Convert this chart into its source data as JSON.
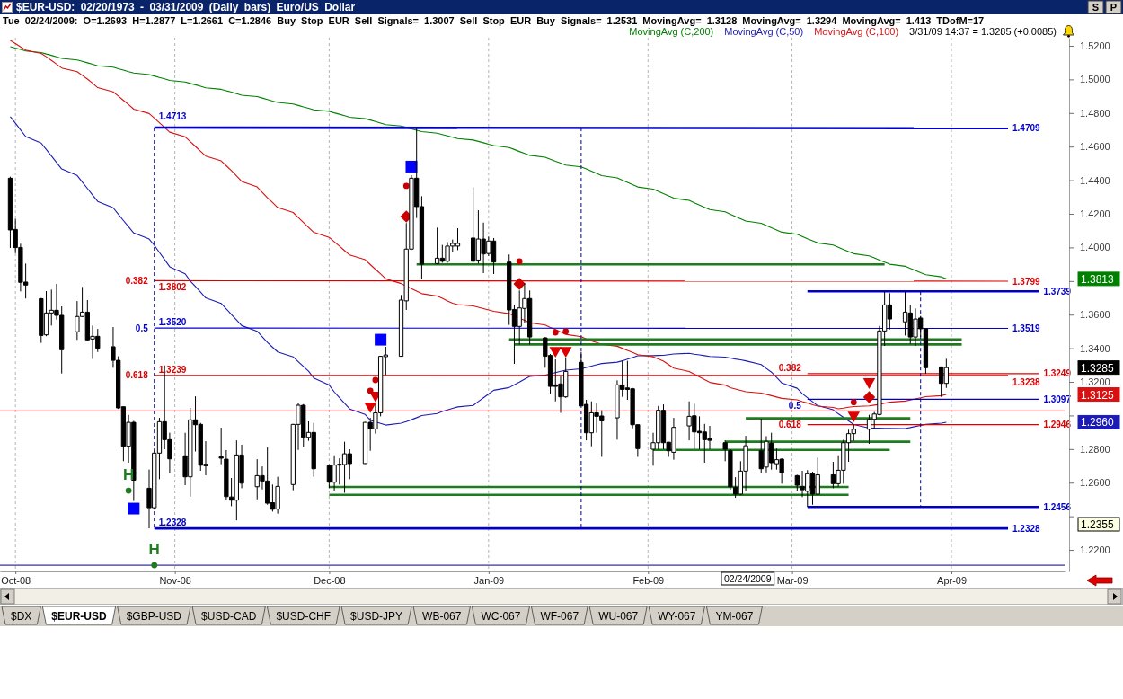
{
  "chart_data": {
    "type": "candlestick",
    "title": "$EUR-USD: 02/20/1973 - 03/31/2009 (Daily bars) Euro/US Dollar",
    "subtitle": "Tue 02/24/2009: O=1.2693 H=1.2877 L=1.2661 C=1.2846 Buy Stop EUR Sell Signals= 1.3007 Sell Stop EUR Buy Signals= 1.2531 MovingAvg= 1.3128 MovingAvg= 1.3294 MovingAvg= 1.413 TDofM=17",
    "x": [
      "2008-09-30",
      "2008-10-01",
      "2008-10-02",
      "2008-10-03",
      "2008-10-06",
      "2008-10-07",
      "2008-10-08",
      "2008-10-09",
      "2008-10-10",
      "2008-10-13",
      "2008-10-14",
      "2008-10-15",
      "2008-10-16",
      "2008-10-17",
      "2008-10-20",
      "2008-10-21",
      "2008-10-22",
      "2008-10-23",
      "2008-10-24",
      "2008-10-27",
      "2008-10-28",
      "2008-10-29",
      "2008-10-30",
      "2008-10-31",
      "2008-11-03",
      "2008-11-04",
      "2008-11-05",
      "2008-11-06",
      "2008-11-07",
      "2008-11-10",
      "2008-11-11",
      "2008-11-12",
      "2008-11-13",
      "2008-11-14",
      "2008-11-17",
      "2008-11-18",
      "2008-11-19",
      "2008-11-20",
      "2008-11-21",
      "2008-11-24",
      "2008-11-25",
      "2008-11-26",
      "2008-11-27",
      "2008-11-28",
      "2008-12-01",
      "2008-12-02",
      "2008-12-03",
      "2008-12-04",
      "2008-12-05",
      "2008-12-08",
      "2008-12-09",
      "2008-12-10",
      "2008-12-11",
      "2008-12-12",
      "2008-12-15",
      "2008-12-16",
      "2008-12-17",
      "2008-12-18",
      "2008-12-19",
      "2008-12-22",
      "2008-12-23",
      "2008-12-24",
      "2008-12-25",
      "2008-12-26",
      "2008-12-29",
      "2008-12-30",
      "2008-12-31",
      "2009-01-01",
      "2009-01-02",
      "2009-01-05",
      "2009-01-06",
      "2009-01-07",
      "2009-01-08",
      "2009-01-09",
      "2009-01-12",
      "2009-01-13",
      "2009-01-14",
      "2009-01-15",
      "2009-01-16",
      "2009-01-19",
      "2009-01-20",
      "2009-01-21",
      "2009-01-22",
      "2009-01-23",
      "2009-01-26",
      "2009-01-27",
      "2009-01-28",
      "2009-01-29",
      "2009-01-30",
      "2009-02-02",
      "2009-02-03",
      "2009-02-04",
      "2009-02-05",
      "2009-02-06",
      "2009-02-09",
      "2009-02-10",
      "2009-02-11",
      "2009-02-12",
      "2009-02-13",
      "2009-02-16",
      "2009-02-17",
      "2009-02-18",
      "2009-02-19",
      "2009-02-20",
      "2009-02-23",
      "2009-02-24",
      "2009-02-25",
      "2009-02-26",
      "2009-02-27",
      "2009-03-02",
      "2009-03-03",
      "2009-03-04",
      "2009-03-05",
      "2009-03-06",
      "2009-03-09",
      "2009-03-10",
      "2009-03-11",
      "2009-03-12",
      "2009-03-13",
      "2009-03-16",
      "2009-03-17",
      "2009-03-18",
      "2009-03-19",
      "2009-03-20",
      "2009-03-23",
      "2009-03-24",
      "2009-03-25",
      "2009-03-26",
      "2009-03-27",
      "2009-03-30",
      "2009-03-31"
    ],
    "ohlc": [
      [
        1.4412,
        1.4421,
        1.3997,
        1.4104
      ],
      [
        1.4107,
        1.4171,
        1.3966,
        1.3999
      ],
      [
        1.4,
        1.4022,
        1.3738,
        1.3792
      ],
      [
        1.3794,
        1.3904,
        1.3696,
        1.3776
      ],
      [
        1.3695,
        1.3699,
        1.3432,
        1.3476
      ],
      [
        1.348,
        1.374,
        1.3472,
        1.361
      ],
      [
        1.361,
        1.3749,
        1.3535,
        1.3626
      ],
      [
        1.3626,
        1.3783,
        1.3571,
        1.3596
      ],
      [
        1.3596,
        1.3649,
        1.325,
        1.3391
      ],
      [
        1.3498,
        1.3681,
        1.345,
        1.3589
      ],
      [
        1.3589,
        1.3765,
        1.3587,
        1.3615
      ],
      [
        1.3615,
        1.3687,
        1.3441,
        1.345
      ],
      [
        1.3455,
        1.3535,
        1.3337,
        1.3471
      ],
      [
        1.3471,
        1.3515,
        1.3378,
        1.34
      ],
      [
        1.3409,
        1.3526,
        1.3284,
        1.3328
      ],
      [
        1.3328,
        1.3352,
        1.3039,
        1.3045
      ],
      [
        1.3052,
        1.3055,
        1.2728,
        1.2817
      ],
      [
        1.2817,
        1.3004,
        1.2719,
        1.2959
      ],
      [
        1.2959,
        1.2968,
        1.2491,
        1.2615
      ],
      [
        1.2567,
        1.2678,
        1.2328,
        1.2451
      ],
      [
        1.2451,
        1.279,
        1.244,
        1.2776
      ],
      [
        1.2776,
        1.2986,
        1.2621,
        1.2963
      ],
      [
        1.2963,
        1.3298,
        1.2799,
        1.2856
      ],
      [
        1.2856,
        1.2897,
        1.2656,
        1.2742
      ],
      [
        1.276,
        1.2897,
        1.2585,
        1.2635
      ],
      [
        1.2635,
        1.3045,
        1.2517,
        1.2974
      ],
      [
        1.2974,
        1.3114,
        1.2786,
        1.2945
      ],
      [
        1.2947,
        1.2956,
        1.2671,
        1.2704
      ],
      [
        1.271,
        1.2847,
        1.2644,
        1.2701
      ],
      [
        1.2754,
        1.2927,
        1.271,
        1.2746
      ],
      [
        1.274,
        1.2794,
        1.2496,
        1.2517
      ],
      [
        1.2515,
        1.2628,
        1.246,
        1.2496
      ],
      [
        1.2496,
        1.2852,
        1.2376,
        1.2765
      ],
      [
        1.2765,
        1.2826,
        1.2567,
        1.2597
      ],
      [
        1.2576,
        1.274,
        1.2501,
        1.2642
      ],
      [
        1.2642,
        1.2697,
        1.256,
        1.261
      ],
      [
        1.261,
        1.2811,
        1.2469,
        1.2478
      ],
      [
        1.2481,
        1.2589,
        1.2428,
        1.2442
      ],
      [
        1.2443,
        1.2635,
        1.2416,
        1.2578
      ],
      [
        1.2589,
        1.295,
        1.2555,
        1.2947
      ],
      [
        1.2947,
        1.3077,
        1.2795,
        1.3061
      ],
      [
        1.3061,
        1.3068,
        1.2813,
        1.287
      ],
      [
        1.287,
        1.2965,
        1.2849,
        1.2899
      ],
      [
        1.2899,
        1.2956,
        1.2635,
        1.2683
      ],
      [
        1.2701,
        1.271,
        1.2567,
        1.2603
      ],
      [
        1.2603,
        1.2763,
        1.2553,
        1.2705
      ],
      [
        1.271,
        1.2745,
        1.2589,
        1.2705
      ],
      [
        1.2708,
        1.2844,
        1.254,
        1.2772
      ],
      [
        1.2772,
        1.2799,
        1.2621,
        1.2714
      ],
      [
        1.2714,
        1.2962,
        1.2712,
        1.2959
      ],
      [
        1.2959,
        1.2986,
        1.279,
        1.292
      ],
      [
        1.292,
        1.3066,
        1.2892,
        1.3016
      ],
      [
        1.3016,
        1.3355,
        1.2995,
        1.3352
      ],
      [
        1.335,
        1.3409,
        1.3241,
        1.336
      ],
      [
        1.3352,
        1.3717,
        1.335,
        1.3687
      ],
      [
        1.3682,
        1.4145,
        1.3628,
        1.399
      ],
      [
        1.399,
        1.443,
        1.3985,
        1.4412
      ],
      [
        1.4412,
        1.4713,
        1.4175,
        1.4243
      ],
      [
        1.4243,
        1.4305,
        1.3815,
        1.39
      ],
      [
        1.3904,
        1.4118,
        1.39,
        1.3936
      ],
      [
        1.3936,
        1.4015,
        1.3909,
        1.3918
      ],
      [
        1.3918,
        1.4032,
        1.3909,
        1.4008
      ],
      [
        1.4008,
        1.4047,
        1.3975,
        1.4024
      ],
      [
        1.4008,
        1.4114,
        1.3984,
        1.4024
      ],
      [
        1.4056,
        1.4359,
        1.3912,
        1.3918
      ],
      [
        1.3925,
        1.4221,
        1.3904,
        1.405
      ],
      [
        1.405,
        1.4148,
        1.3847,
        1.3961
      ],
      [
        1.3964,
        1.4065,
        1.3949,
        1.4038
      ],
      [
        1.4038,
        1.4056,
        1.3842,
        1.3913
      ],
      [
        1.3913,
        1.3958,
        1.3539,
        1.3628
      ],
      [
        1.3631,
        1.3655,
        1.3307,
        1.353
      ],
      [
        1.353,
        1.3744,
        1.3423,
        1.364
      ],
      [
        1.3637,
        1.3788,
        1.3553,
        1.3696
      ],
      [
        1.3696,
        1.3744,
        1.3423,
        1.3467
      ],
      [
        1.3462,
        1.3467,
        1.3284,
        1.3352
      ],
      [
        1.3357,
        1.3366,
        1.3129,
        1.3173
      ],
      [
        1.3182,
        1.3334,
        1.3084,
        1.3173
      ],
      [
        1.3188,
        1.3236,
        1.3016,
        1.3111
      ],
      [
        1.3111,
        1.3343,
        1.3105,
        1.3262
      ],
      [
        1.3316,
        1.3378,
        1.3057,
        1.3057
      ],
      [
        1.3066,
        1.3093,
        1.2852,
        1.2897
      ],
      [
        1.2897,
        1.3084,
        1.2817,
        1.3016
      ],
      [
        1.3016,
        1.3075,
        1.2897,
        1.2995
      ],
      [
        1.2997,
        1.3031,
        1.2754,
        1.2968
      ],
      [
        1.2986,
        1.3209,
        1.2856,
        1.3182
      ],
      [
        1.3182,
        1.3325,
        1.3111,
        1.3155
      ],
      [
        1.3164,
        1.3325,
        1.3093,
        1.3155
      ],
      [
        1.3159,
        1.3164,
        1.2924,
        1.2945
      ],
      [
        1.2945,
        1.2948,
        1.2754,
        1.2803
      ],
      [
        1.2799,
        1.2897,
        1.2701,
        1.2838
      ],
      [
        1.2838,
        1.3057,
        1.2798,
        1.3031
      ],
      [
        1.3031,
        1.3066,
        1.2799,
        1.2838
      ],
      [
        1.2841,
        1.2843,
        1.2754,
        1.279
      ],
      [
        1.2781,
        1.2986,
        1.2737,
        1.2929
      ],
      [
        1.2938,
        1.3084,
        1.2852,
        1.2995
      ],
      [
        1.2998,
        1.307,
        1.2799,
        1.2902
      ],
      [
        1.2906,
        1.2995,
        1.2799,
        1.2897
      ],
      [
        1.2902,
        1.295,
        1.2719,
        1.2856
      ],
      [
        1.2861,
        1.2938,
        1.2799,
        1.2852
      ],
      [
        1.2838,
        1.2852,
        1.2728,
        1.2799
      ],
      [
        1.279,
        1.2799,
        1.2558,
        1.2576
      ],
      [
        1.2571,
        1.2633,
        1.251,
        1.2532
      ],
      [
        1.2532,
        1.2728,
        1.2526,
        1.2669
      ],
      [
        1.2669,
        1.2879,
        1.2549,
        1.282
      ],
      [
        1.279,
        1.2981,
        1.2656,
        1.2683
      ],
      [
        1.2693,
        1.2877,
        1.2661,
        1.2846
      ],
      [
        1.2835,
        1.2897,
        1.2678,
        1.2719
      ],
      [
        1.2713,
        1.2803,
        1.2678,
        1.2737
      ],
      [
        1.274,
        1.2745,
        1.2594,
        1.266
      ],
      [
        1.2642,
        1.2647,
        1.2549,
        1.2585
      ],
      [
        1.2576,
        1.2671,
        1.2514,
        1.2558
      ],
      [
        1.2549,
        1.2675,
        1.2456,
        1.2653
      ],
      [
        1.2653,
        1.2665,
        1.2469,
        1.2532
      ],
      [
        1.2532,
        1.2749,
        1.253,
        1.2647
      ],
      [
        1.2647,
        1.2724,
        1.2567,
        1.2594
      ],
      [
        1.2594,
        1.2763,
        1.2576,
        1.2674
      ],
      [
        1.2674,
        1.2856,
        1.2594,
        1.2838
      ],
      [
        1.2838,
        1.2915,
        1.2724,
        1.2892
      ],
      [
        1.2892,
        1.2945,
        1.2849,
        1.2918
      ],
      [
        1.2918,
        1.3004,
        1.2831,
        1.2977
      ],
      [
        1.2977,
        1.3021,
        1.2922,
        1.3009
      ],
      [
        1.3006,
        1.3533,
        1.3001,
        1.3503
      ],
      [
        1.3503,
        1.3739,
        1.3414,
        1.3658
      ],
      [
        1.3658,
        1.3728,
        1.3512,
        1.3574
      ],
      [
        1.3557,
        1.3735,
        1.3476,
        1.3615
      ],
      [
        1.361,
        1.3655,
        1.3426,
        1.3467
      ],
      [
        1.3467,
        1.3637,
        1.3414,
        1.3574
      ],
      [
        1.358,
        1.3592,
        1.3467,
        1.3516
      ],
      [
        1.3516,
        1.3521,
        1.3248,
        1.3284
      ],
      [
        1.3289,
        1.3289,
        1.3111,
        1.3191
      ],
      [
        1.3191,
        1.3337,
        1.3164,
        1.3285
      ]
    ],
    "series": [
      {
        "type": "line",
        "name": "MovingAvg (C,200)",
        "color": "#008000",
        "values": [
          1.5195,
          1.5186,
          1.5178,
          1.5169,
          1.516,
          1.5151,
          1.5143,
          1.5134,
          1.5125,
          1.5116,
          1.5108,
          1.5099,
          1.509,
          1.5081,
          1.5073,
          1.5064,
          1.5055,
          1.5046,
          1.5038,
          1.5029,
          1.502,
          1.5011,
          1.5003,
          1.4994,
          1.4985,
          1.4976,
          1.4968,
          1.4959,
          1.495,
          1.4941,
          1.4933,
          1.4924,
          1.4915,
          1.4906,
          1.4898,
          1.4889,
          1.488,
          1.4871,
          1.4863,
          1.4854,
          1.4845,
          1.4836,
          1.4828,
          1.4819,
          1.481,
          1.4801,
          1.4793,
          1.4784,
          1.4775,
          1.4766,
          1.4758,
          1.4749,
          1.474,
          1.4731,
          1.4723,
          1.4714,
          1.4705,
          1.4697,
          1.4689,
          1.468,
          1.4672,
          1.4664,
          1.4656,
          1.4648,
          1.4639,
          1.4631,
          1.4623,
          1.4614,
          1.4606,
          1.4594,
          1.4583,
          1.4571,
          1.456,
          1.4548,
          1.4537,
          1.4525,
          1.4513,
          1.4502,
          1.449,
          1.4479,
          1.4467,
          1.4454,
          1.444,
          1.4427,
          1.4414,
          1.44,
          1.4387,
          1.4374,
          1.436,
          1.4347,
          1.4334,
          1.432,
          1.4307,
          1.4293,
          1.428,
          1.4266,
          1.4252,
          1.4239,
          1.4225,
          1.4212,
          1.4198,
          1.4184,
          1.4171,
          1.4157,
          1.4144,
          1.413,
          1.4117,
          1.4104,
          1.4091,
          1.4078,
          1.4065,
          1.4052,
          1.404,
          1.4027,
          1.4014,
          1.4001,
          1.3988,
          1.3975,
          1.3963,
          1.395,
          1.3938,
          1.3925,
          1.3913,
          1.39,
          1.3888,
          1.3875,
          1.3863,
          1.385,
          1.3838,
          1.3825,
          1.3813
        ]
      },
      {
        "type": "line",
        "name": "MovingAvg (C,50)",
        "color": "#1c1cb4",
        "values": [
          1.4778,
          1.4739,
          1.4699,
          1.466,
          1.4621,
          1.4583,
          1.4544,
          1.4505,
          1.4467,
          1.4428,
          1.4389,
          1.4351,
          1.4312,
          1.4274,
          1.4236,
          1.4198,
          1.416,
          1.4123,
          1.4086,
          1.405,
          1.4013,
          1.397,
          1.3928,
          1.3885,
          1.3843,
          1.38,
          1.3767,
          1.3734,
          1.37,
          1.3667,
          1.3634,
          1.3601,
          1.3568,
          1.3535,
          1.3501,
          1.3468,
          1.3435,
          1.3406,
          1.3378,
          1.3349,
          1.332,
          1.3292,
          1.3264,
          1.3223,
          1.3181,
          1.314,
          1.3106,
          1.3073,
          1.3039,
          1.3006,
          1.2972,
          1.2962,
          1.2953,
          1.2943,
          1.2954,
          1.2964,
          1.2975,
          1.2987,
          1.3,
          1.3012,
          1.3024,
          1.3033,
          1.3042,
          1.3051,
          1.306,
          1.3083,
          1.3105,
          1.3128,
          1.315,
          1.3166,
          1.3183,
          1.3199,
          1.3216,
          1.3232,
          1.324,
          1.3247,
          1.3255,
          1.3263,
          1.327,
          1.3278,
          1.3286,
          1.3294,
          1.3302,
          1.3309,
          1.3317,
          1.3325,
          1.3335,
          1.3345,
          1.3355,
          1.3356,
          1.3357,
          1.3358,
          1.3362,
          1.3366,
          1.337,
          1.3365,
          1.3361,
          1.3356,
          1.3351,
          1.3347,
          1.3342,
          1.3336,
          1.3331,
          1.3325,
          1.3303,
          1.328,
          1.3258,
          1.3226,
          1.3194,
          1.3162,
          1.313,
          1.3106,
          1.3082,
          1.3058,
          1.3034,
          1.301,
          1.2989,
          1.2968,
          1.2946,
          1.2925,
          1.2924,
          1.2924,
          1.2923,
          1.2923,
          1.2922,
          1.2928,
          1.2935,
          1.2941,
          1.2947,
          1.2954,
          1.296
        ]
      },
      {
        "type": "line",
        "name": "MovingAvg (C,100)",
        "color": "#d81010",
        "values": [
          1.5232,
          1.5213,
          1.5193,
          1.5174,
          1.5154,
          1.5135,
          1.5113,
          1.5091,
          1.5068,
          1.5046,
          1.5024,
          1.5002,
          1.4977,
          1.4951,
          1.4926,
          1.4901,
          1.4875,
          1.485,
          1.4823,
          1.4797,
          1.477,
          1.4742,
          1.4714,
          1.4686,
          1.4658,
          1.463,
          1.4601,
          1.4572,
          1.4544,
          1.4515,
          1.4486,
          1.4457,
          1.4425,
          1.4393,
          1.436,
          1.4328,
          1.4296,
          1.4267,
          1.4237,
          1.4208,
          1.4178,
          1.4149,
          1.4119,
          1.409,
          1.406,
          1.4034,
          1.4008,
          1.3981,
          1.3955,
          1.3927,
          1.3898,
          1.387,
          1.3842,
          1.3813,
          1.3785,
          1.377,
          1.3755,
          1.374,
          1.3725,
          1.3711,
          1.3697,
          1.3682,
          1.3668,
          1.366,
          1.3652,
          1.3644,
          1.3636,
          1.3628,
          1.362,
          1.3606,
          1.3593,
          1.3579,
          1.3566,
          1.3552,
          1.3538,
          1.3524,
          1.3511,
          1.3497,
          1.3483,
          1.3469,
          1.3455,
          1.3444,
          1.3434,
          1.3423,
          1.3412,
          1.34,
          1.3387,
          1.3375,
          1.3362,
          1.3349,
          1.3336,
          1.3323,
          1.3303,
          1.3282,
          1.3262,
          1.3246,
          1.323,
          1.3213,
          1.3197,
          1.3181,
          1.3165,
          1.3157,
          1.3149,
          1.3141,
          1.3133,
          1.3126,
          1.3118,
          1.311,
          1.3102,
          1.3093,
          1.3083,
          1.3074,
          1.3064,
          1.3056,
          1.3048,
          1.304,
          1.3044,
          1.3049,
          1.3053,
          1.3057,
          1.3062,
          1.3066,
          1.3073,
          1.3079,
          1.3086,
          1.3092,
          1.3099,
          1.3105,
          1.3112,
          1.3118,
          1.3125
        ]
      },
      {
        "type": "line",
        "color": "#0000cc",
        "x": [
          "2008-10-28",
          "2009-04-12"
        ],
        "values": [
          1.4713,
          1.4709
        ],
        "value_labels": [
          "1.4713",
          "1.4709"
        ]
      },
      {
        "type": "line",
        "name": "0.382",
        "color": "#dd0000",
        "x": [
          "2008-10-28",
          "2009-04-12"
        ],
        "values": [
          1.3802,
          1.3799
        ],
        "value_labels": [
          "1.3802",
          "1.3799"
        ]
      },
      {
        "type": "line",
        "name": "0.5",
        "color": "#0000cc",
        "x": [
          "2008-10-28",
          "2009-04-12"
        ],
        "values": [
          1.352,
          1.3519
        ],
        "value_labels": [
          "1.3520",
          "1.3519"
        ]
      },
      {
        "type": "line",
        "name": "0.618",
        "color": "#dd0000",
        "x": [
          "2008-10-28",
          "2009-04-12"
        ],
        "values": [
          1.3239,
          1.3238
        ],
        "value_labels": [
          "1.3239",
          "1.3238"
        ]
      },
      {
        "type": "line",
        "color": "#0000cc",
        "x": [
          "2008-10-28",
          "2009-04-12"
        ],
        "values": [
          1.2328,
          1.2328
        ],
        "value_labels": [
          "1.2328",
          "1.2328"
        ]
      },
      {
        "type": "line",
        "color": "#0000cc",
        "x": [
          "2009-03-04",
          "2009-04-18"
        ],
        "values": [
          1.3739,
          1.3739
        ],
        "value_labels": [
          null,
          "1.3739"
        ]
      },
      {
        "type": "line",
        "name": "0.382",
        "color": "#dd0000",
        "x": [
          "2009-03-04",
          "2009-04-18"
        ],
        "values": [
          1.3249,
          1.3249
        ],
        "value_labels": [
          null,
          "1.3249"
        ]
      },
      {
        "type": "line",
        "name": "0.5",
        "color": "#0000cc",
        "x": [
          "2009-03-04",
          "2009-04-18"
        ],
        "values": [
          1.3097,
          1.3097
        ],
        "value_labels": [
          null,
          "1.3097"
        ]
      },
      {
        "type": "line",
        "name": "0.618",
        "color": "#dd0000",
        "x": [
          "2009-03-04",
          "2009-04-18"
        ],
        "values": [
          1.2946,
          1.2946
        ],
        "value_labels": [
          null,
          "1.2946"
        ]
      },
      {
        "type": "line",
        "color": "#0000cc",
        "x": [
          "2009-03-04",
          "2009-04-18"
        ],
        "values": [
          1.2456,
          1.2456
        ],
        "value_labels": [
          null,
          "1.2456"
        ]
      },
      {
        "type": "line",
        "color": "#1e7b1e",
        "x": [
          "2008-12-18",
          "2009-03-19"
        ],
        "values": [
          1.3899,
          1.3899
        ]
      },
      {
        "type": "line",
        "color": "#1e7b1e",
        "x": [
          "2009-01-05",
          "2009-04-03"
        ],
        "values": [
          1.3453,
          1.3453
        ]
      },
      {
        "type": "line",
        "color": "#1e7b1e",
        "x": [
          "2009-01-06",
          "2009-04-03"
        ],
        "values": [
          1.3423,
          1.3423
        ]
      },
      {
        "type": "line",
        "color": "#1e7b1e",
        "x": [
          "2009-02-20",
          "2009-03-24"
        ],
        "values": [
          1.2983,
          1.2983
        ]
      },
      {
        "type": "line",
        "color": "#1e7b1e",
        "x": [
          "2009-02-16",
          "2009-03-24"
        ],
        "values": [
          1.2844,
          1.2844
        ]
      },
      {
        "type": "line",
        "color": "#1e7b1e",
        "x": [
          "2009-02-02",
          "2009-03-20"
        ],
        "values": [
          1.2795,
          1.2795
        ]
      },
      {
        "type": "line",
        "color": "#1e7b1e",
        "x": [
          "2008-12-01",
          "2009-03-12"
        ],
        "values": [
          1.2575,
          1.2575
        ]
      },
      {
        "type": "line",
        "color": "#1e7b1e",
        "x": [
          "2008-12-01",
          "2009-03-12"
        ],
        "values": [
          1.2528,
          1.2528
        ]
      },
      {
        "type": "line",
        "color": "#000080",
        "line_style": "dashed",
        "x": [
          "2008-10-28",
          "2008-10-28"
        ],
        "values": [
          1.4713,
          1.2328
        ]
      },
      {
        "type": "line",
        "color": "#000080",
        "line_style": "dashed",
        "x": [
          "2009-01-19",
          "2009-01-19"
        ],
        "values": [
          1.4713,
          1.2328
        ]
      },
      {
        "type": "line",
        "color": "#000080",
        "line_style": "dashed",
        "x": [
          "2009-03-26",
          "2009-03-26"
        ],
        "values": [
          1.3739,
          1.2456
        ]
      },
      {
        "type": "scatter",
        "color": "#0000ff",
        "marker": "square",
        "x": [
          "2008-10-24",
          "2008-12-11",
          "2008-12-17"
        ],
        "values": [
          1.2446,
          1.3451,
          1.4481
        ]
      },
      {
        "type": "scatter",
        "color": "#cc0000",
        "marker": "diamond",
        "x": [
          "2008-12-16",
          "2009-01-07",
          "2009-03-16"
        ],
        "values": [
          1.4184,
          1.3783,
          1.3109
        ]
      },
      {
        "type": "scatter",
        "color": "#dd0000",
        "marker": "triangle",
        "x": [
          "2008-12-09",
          "2008-12-10",
          "2009-01-14",
          "2009-01-16",
          "2009-03-13",
          "2009-03-16"
        ],
        "values": [
          1.3056,
          1.312,
          1.3387,
          1.3387,
          1.3002,
          1.32
        ]
      },
      {
        "type": "scatter",
        "color": "#cc0000",
        "marker": "circle",
        "x": [
          "2008-12-09",
          "2008-12-10",
          "2008-12-16",
          "2009-01-07",
          "2009-01-14",
          "2009-01-16",
          "2009-03-13"
        ],
        "values": [
          1.3147,
          1.3211,
          1.4366,
          1.3917,
          1.3494,
          1.35,
          1.3079
        ]
      },
      {
        "type": "scatter",
        "color": "#1e7b1e",
        "marker": "circle",
        "x": [
          "2008-10-23",
          "2008-10-28"
        ],
        "values": [
          1.2553,
          1.2109
        ],
        "value_labels": [
          "H",
          "H"
        ]
      }
    ],
    "xlim": [
      "2008-09-28",
      "2009-04-23"
    ],
    "xticks": [
      {
        "value": "2008-10-01",
        "label": "Oct-08"
      },
      {
        "value": "2008-11-01",
        "label": "Nov-08"
      },
      {
        "value": "2008-12-01",
        "label": "Dec-08"
      },
      {
        "value": "2009-01-01",
        "label": "Jan-09"
      },
      {
        "value": "2009-02-01",
        "label": "Feb-09"
      },
      {
        "value": "2009-03-01",
        "label": "Mar-09"
      },
      {
        "value": "2009-04-01",
        "label": "Apr-09"
      }
    ],
    "ylim": [
      1.2072,
      1.5248
    ],
    "yticks": [
      {
        "value": 1.22,
        "label": "1.2200"
      },
      {
        "value": 1.24,
        "label": null
      },
      {
        "value": 1.26,
        "label": "1.2600"
      },
      {
        "value": 1.28,
        "label": "1.2800"
      },
      {
        "value": 1.3,
        "label": null
      },
      {
        "value": 1.32,
        "label": "1.3200"
      },
      {
        "value": 1.34,
        "label": "1.3400"
      },
      {
        "value": 1.36,
        "label": "1.3600"
      },
      {
        "value": 1.38,
        "label": null
      },
      {
        "value": 1.4,
        "label": "1.4000"
      },
      {
        "value": 1.42,
        "label": "1.4200"
      },
      {
        "value": 1.44,
        "label": "1.4400"
      },
      {
        "value": 1.46,
        "label": "1.4600"
      },
      {
        "value": 1.48,
        "label": "1.4800"
      },
      {
        "value": 1.5,
        "label": "1.5000"
      },
      {
        "value": 1.52,
        "label": "1.5200"
      }
    ],
    "ref_lines": [
      {
        "axis": "y",
        "value": 1.3027,
        "color": "#cc0000"
      },
      {
        "axis": "y",
        "value": 1.2109,
        "color": "#000080"
      }
    ],
    "grid": "x",
    "legend": "top right",
    "annotations": [
      "3/31/09 14:37 = 1.3285 (+0.0085)",
      "1.2355",
      "02/24/2009",
      "1.3285",
      "1.3813",
      "1.2960",
      "1.3125",
      "S",
      "P",
      "$DX",
      "$EUR-USD",
      "$GBP-USD",
      "$USD-CAD",
      "$USD-CHF",
      "$USD-JPY",
      "WB-067",
      "WC-067",
      "WF-067",
      "WU-067",
      "WY-067",
      "YM-067"
    ]
  }
}
